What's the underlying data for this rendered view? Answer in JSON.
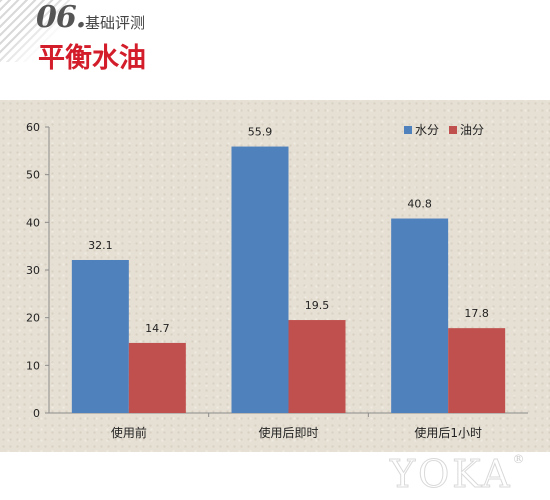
{
  "header": {
    "section_number": "06.",
    "section_subtitle": "基础评测",
    "title": "平衡水油"
  },
  "chart_data": {
    "type": "bar",
    "categories": [
      "使用前",
      "使用后即时",
      "使用后1小时"
    ],
    "series": [
      {
        "name": "水分",
        "values": [
          32.1,
          55.9,
          40.8
        ],
        "color": "#4f81bd"
      },
      {
        "name": "油分",
        "values": [
          14.7,
          19.5,
          17.8
        ],
        "color": "#c0504d"
      }
    ],
    "ylim": [
      0,
      60
    ],
    "yticks": [
      0,
      10,
      20,
      30,
      40,
      50,
      60
    ],
    "grid": false,
    "legend_position": "top-right",
    "title": "",
    "xlabel": "",
    "ylabel": ""
  },
  "watermark": {
    "text": "YOKA",
    "mark": "®"
  }
}
